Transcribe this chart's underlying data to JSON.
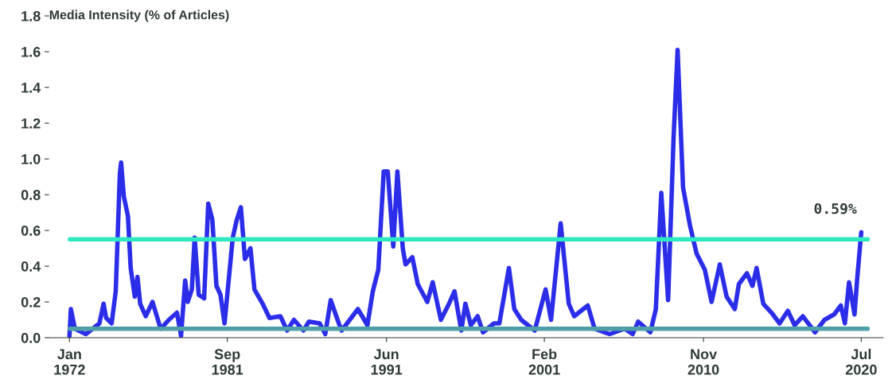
{
  "chart_data": {
    "type": "line",
    "ylabel": "Media Intensity (% of Articles)",
    "x": [
      "1972-01",
      "1972-02",
      "1972-05",
      "1973-01",
      "1973-11",
      "1974-02",
      "1974-04",
      "1974-08",
      "1974-11",
      "1975-02",
      "1975-03",
      "1975-05",
      "1975-08",
      "1975-10",
      "1976-01",
      "1976-03",
      "1976-05",
      "1976-09",
      "1977-02",
      "1977-08",
      "1978-02",
      "1978-08",
      "1978-11",
      "1979-02",
      "1979-04",
      "1979-07",
      "1979-09",
      "1979-12",
      "1980-04",
      "1980-07",
      "1980-10",
      "1981-01",
      "1981-04",
      "1981-07",
      "1982-01",
      "1982-04",
      "1982-07",
      "1982-10",
      "1983-02",
      "1983-05",
      "1983-11",
      "1984-04",
      "1984-12",
      "1985-05",
      "1985-10",
      "1986-05",
      "1986-09",
      "1987-05",
      "1987-09",
      "1988-01",
      "1988-07",
      "1988-09",
      "1989-09",
      "1990-04",
      "1990-08",
      "1990-12",
      "1991-04",
      "1991-07",
      "1991-11",
      "1992-02",
      "1992-06",
      "1992-08",
      "1993-01",
      "1993-05",
      "1993-12",
      "1994-04",
      "1994-10",
      "1995-04",
      "1995-08",
      "1996-01",
      "1996-04",
      "1996-08",
      "1997-01",
      "1997-05",
      "1998-01",
      "1998-05",
      "1998-12",
      "1999-04",
      "1999-09",
      "2000-07",
      "2001-03",
      "2001-07",
      "2002-02",
      "2002-08",
      "2002-12",
      "2003-10",
      "2004-03",
      "2005-02",
      "2006-01",
      "2006-07",
      "2006-11",
      "2007-08",
      "2007-12",
      "2008-04",
      "2008-09",
      "2009-01",
      "2009-04",
      "2009-08",
      "2010-01",
      "2010-06",
      "2010-12",
      "2011-05",
      "2011-11",
      "2012-04",
      "2012-10",
      "2013-01",
      "2013-07",
      "2013-11",
      "2014-02",
      "2014-07",
      "2015-01",
      "2015-07",
      "2016-01",
      "2016-06",
      "2016-12",
      "2017-09",
      "2018-04",
      "2018-11",
      "2019-04",
      "2019-07",
      "2019-10",
      "2020-02",
      "2020-04",
      "2020-07"
    ],
    "series": [
      {
        "color": "#2b2de8",
        "values": [
          0.01,
          0.16,
          0.05,
          0.02,
          0.08,
          0.19,
          0.11,
          0.08,
          0.26,
          0.92,
          0.98,
          0.79,
          0.68,
          0.39,
          0.23,
          0.34,
          0.19,
          0.12,
          0.2,
          0.05,
          0.1,
          0.14,
          0.01,
          0.32,
          0.2,
          0.27,
          0.56,
          0.24,
          0.22,
          0.75,
          0.66,
          0.29,
          0.24,
          0.08,
          0.56,
          0.66,
          0.73,
          0.44,
          0.5,
          0.27,
          0.19,
          0.11,
          0.12,
          0.04,
          0.1,
          0.04,
          0.09,
          0.08,
          0.02,
          0.21,
          0.08,
          0.04,
          0.16,
          0.07,
          0.26,
          0.38,
          0.93,
          0.93,
          0.51,
          0.93,
          0.5,
          0.41,
          0.45,
          0.3,
          0.2,
          0.31,
          0.1,
          0.19,
          0.26,
          0.04,
          0.19,
          0.07,
          0.12,
          0.03,
          0.08,
          0.08,
          0.39,
          0.16,
          0.1,
          0.04,
          0.27,
          0.1,
          0.64,
          0.19,
          0.12,
          0.18,
          0.05,
          0.02,
          0.05,
          0.02,
          0.09,
          0.03,
          0.16,
          0.81,
          0.21,
          1.12,
          1.61,
          0.84,
          0.63,
          0.47,
          0.38,
          0.2,
          0.41,
          0.23,
          0.16,
          0.3,
          0.36,
          0.29,
          0.39,
          0.19,
          0.14,
          0.08,
          0.15,
          0.07,
          0.12,
          0.03,
          0.1,
          0.13,
          0.18,
          0.08,
          0.31,
          0.13,
          0.33,
          0.59
        ]
      }
    ],
    "xlim": [
      "1970-10",
      "2021-11"
    ],
    "xticks": [
      {
        "value": "1972-01",
        "label": "Jan\n1972"
      },
      {
        "value": "1981-09",
        "label": "Sep\n1981"
      },
      {
        "value": "1991-06",
        "label": "Jun\n1991"
      },
      {
        "value": "2001-02",
        "label": "Feb\n2001"
      },
      {
        "value": "2010-11",
        "label": "Nov\n2010"
      },
      {
        "value": "2020-07",
        "label": "Jul\n2020"
      }
    ],
    "ylim": [
      0,
      1.8
    ],
    "yticks": [
      {
        "value": 0,
        "label": "0.0"
      },
      {
        "value": 0.2,
        "label": "0.2"
      },
      {
        "value": 0.4,
        "label": "0.4"
      },
      {
        "value": 0.6,
        "label": "0.6"
      },
      {
        "value": 0.8,
        "label": "0.8"
      },
      {
        "value": 1.0,
        "label": "1.0"
      },
      {
        "value": 1.2,
        "label": "1.2"
      },
      {
        "value": 1.4,
        "label": "1.4"
      },
      {
        "value": 1.6,
        "label": "1.6"
      },
      {
        "value": 1.8,
        "label": "1.8"
      }
    ],
    "ref_lines": [
      {
        "axis": "y",
        "value": 0.55,
        "color": "#2de8c0"
      },
      {
        "axis": "y",
        "value": 0.05,
        "color": "#4e9fa8"
      }
    ],
    "annotations": [
      {
        "text": "0.59%",
        "x": "2020-07",
        "y": 0.59
      }
    ],
    "grid": false,
    "legend": false
  }
}
